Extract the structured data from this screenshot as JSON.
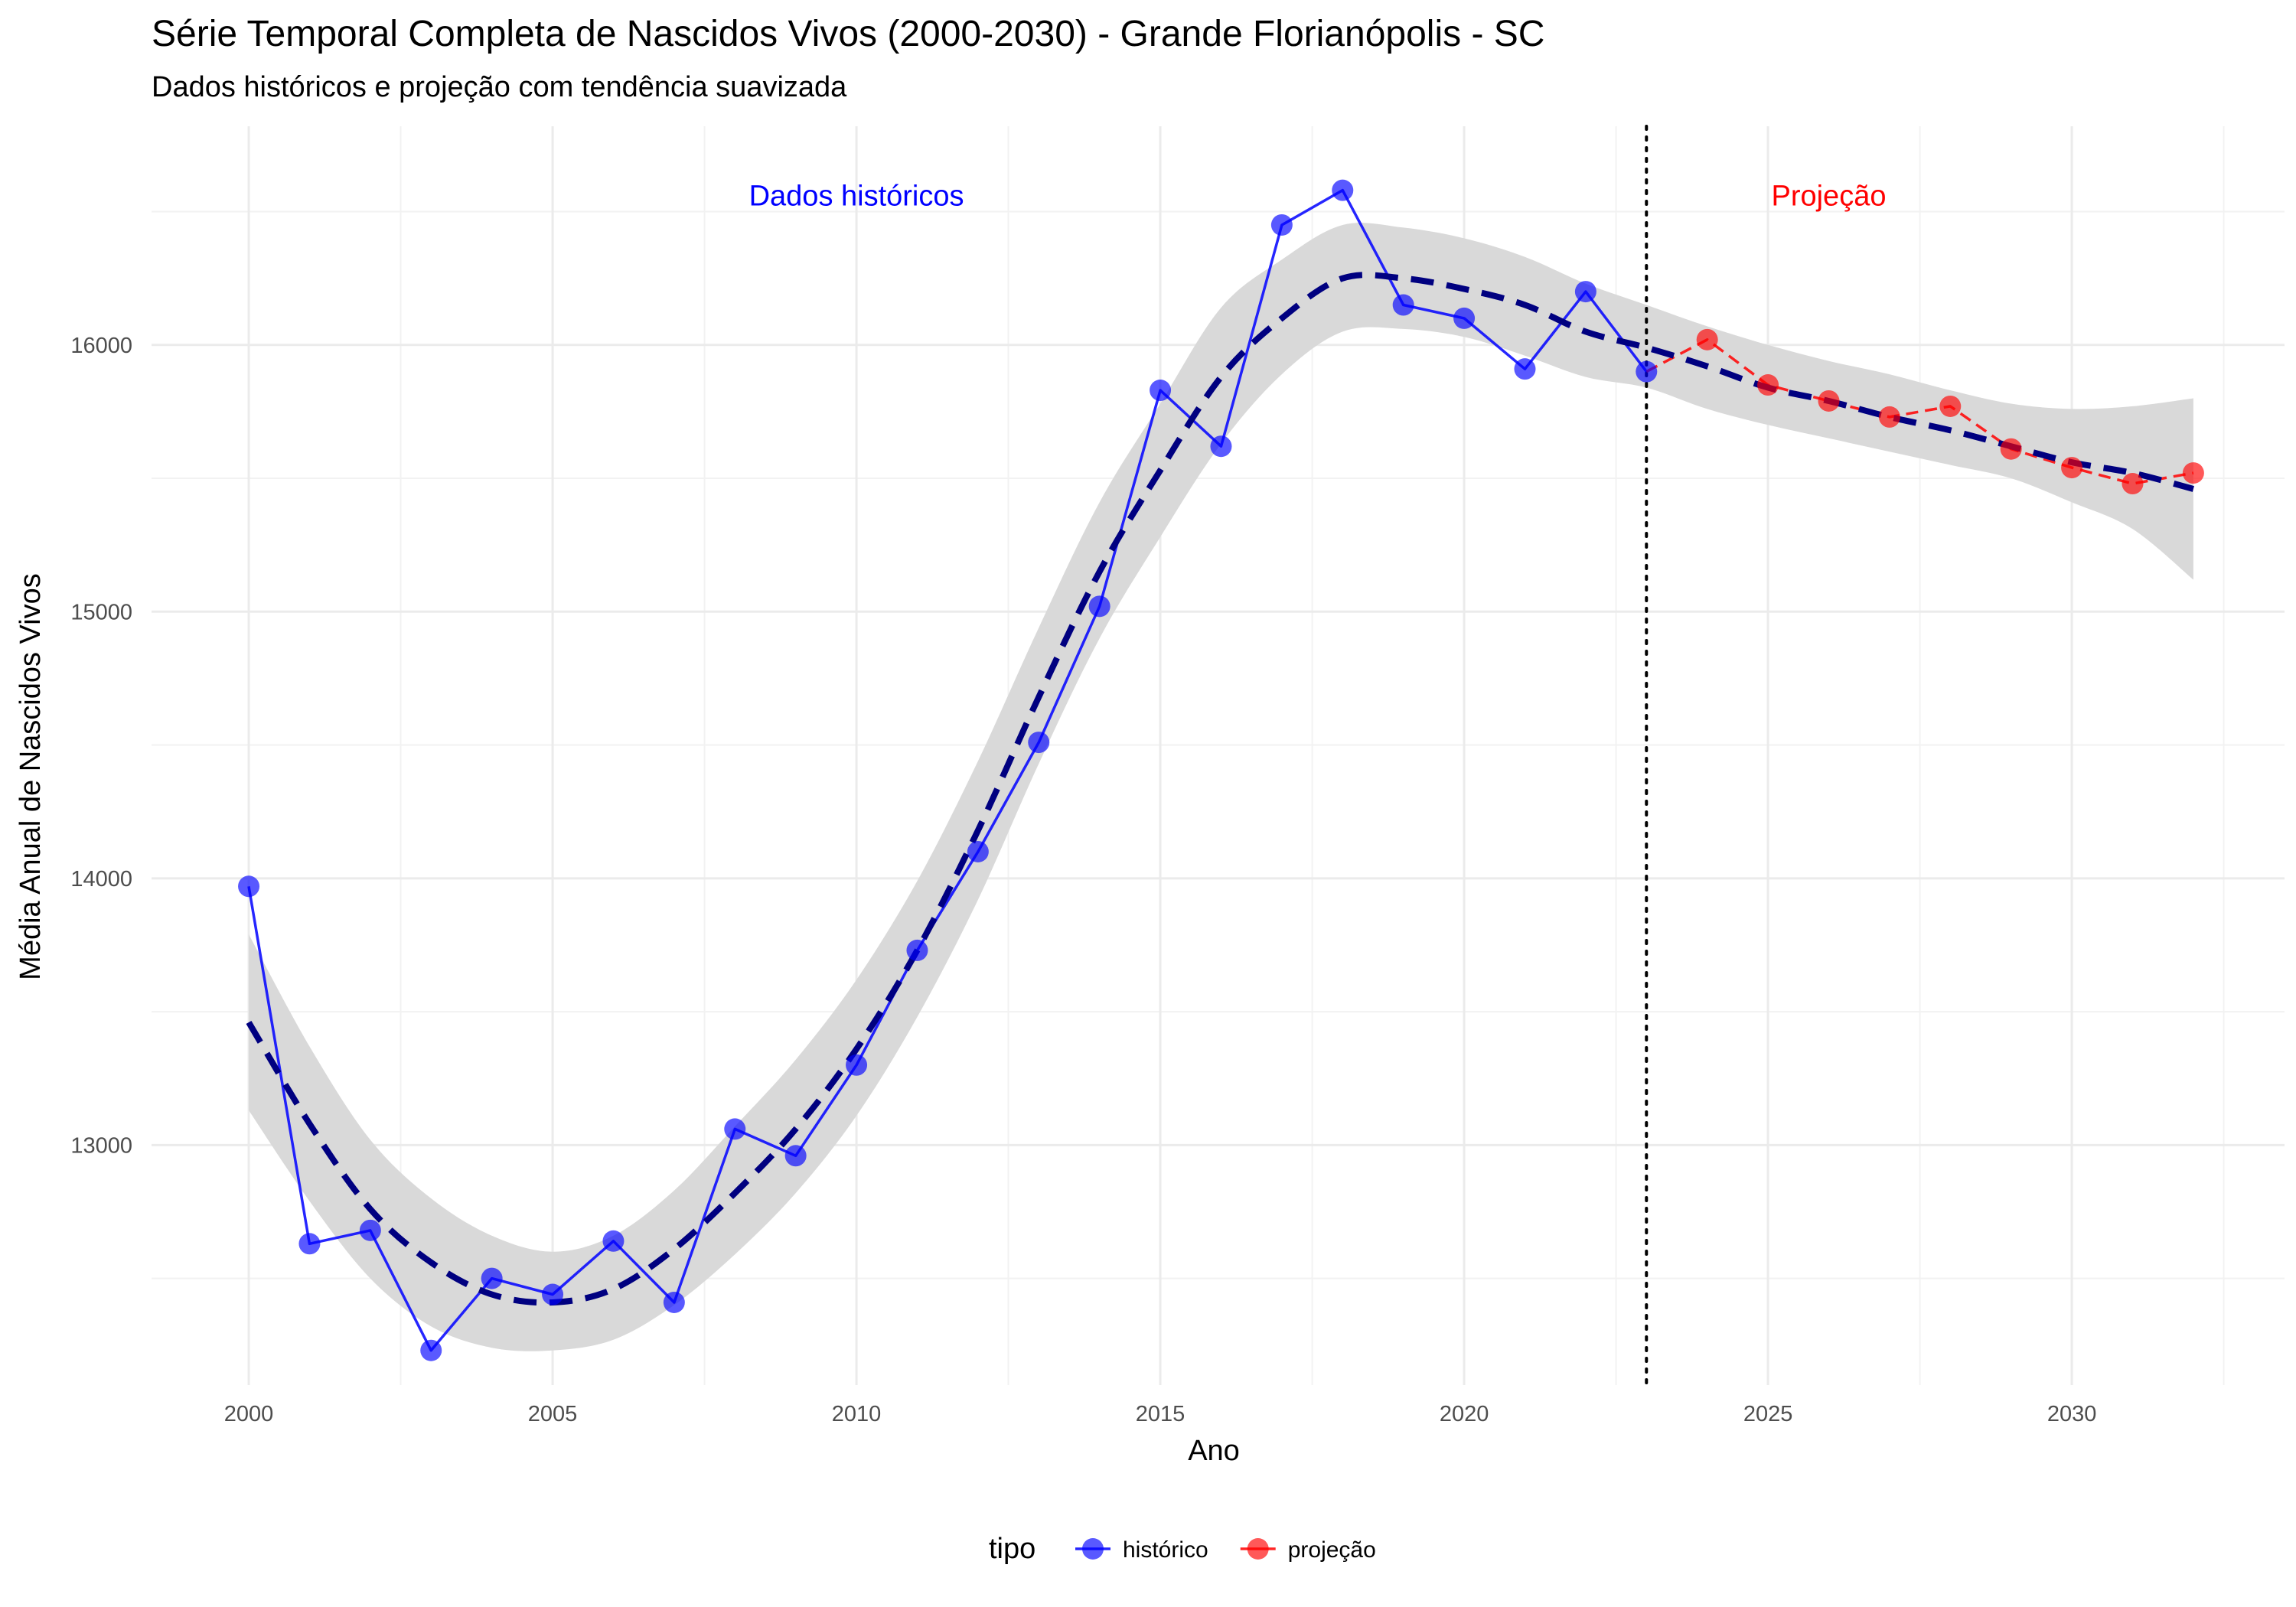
{
  "chart_data": {
    "type": "line",
    "title": "Série Temporal Completa de Nascidos Vivos (2000-2030) -  Grande Florianópolis - SC",
    "subtitle": "Dados históricos e projeção com tendência suavizada",
    "xlabel": "Ano",
    "ylabel": "Média Anual de Nascidos Vivos",
    "xlim": [
      1998.4,
      2033.5
    ],
    "ylim": [
      12100,
      16820
    ],
    "x_ticks": [
      2000,
      2005,
      2010,
      2015,
      2020,
      2025,
      2030
    ],
    "y_ticks": [
      13000,
      14000,
      15000,
      16000
    ],
    "grid": true,
    "legend": {
      "title": "tipo",
      "position": "bottom",
      "items": [
        {
          "label": "histórico",
          "color": "#0000ff"
        },
        {
          "label": "projeção",
          "color": "#ff0000"
        }
      ]
    },
    "series": [
      {
        "name": "histórico",
        "color": "#0000ff",
        "line_style": "solid",
        "x": [
          2000,
          2001,
          2002,
          2003,
          2004,
          2005,
          2006,
          2007,
          2008,
          2009,
          2010,
          2011,
          2012,
          2013,
          2014,
          2015,
          2016,
          2017,
          2018,
          2019,
          2020,
          2021,
          2022,
          2023
        ],
        "y": [
          13970,
          12630,
          12680,
          12230,
          12500,
          12440,
          12640,
          12410,
          13060,
          12960,
          13300,
          13730,
          14100,
          14510,
          15020,
          15830,
          15620,
          16450,
          16580,
          16150,
          16100,
          15910,
          16200,
          15900
        ]
      },
      {
        "name": "projeção",
        "color": "#ff0000",
        "line_style": "dashed",
        "x": [
          2023,
          2024,
          2025,
          2026,
          2027,
          2028,
          2029,
          2030,
          2031,
          2032
        ],
        "y": [
          15900,
          16020,
          15850,
          15790,
          15730,
          15770,
          15610,
          15540,
          15480,
          15520
        ]
      }
    ],
    "smooth_trend": {
      "color": "#000080",
      "line_style": "dashed",
      "band_color": "#d9d9d9",
      "x": [
        2000,
        2001,
        2002,
        2003,
        2004,
        2005,
        2006,
        2007,
        2008,
        2009,
        2010,
        2011,
        2012,
        2013,
        2014,
        2015,
        2016,
        2017,
        2018,
        2019,
        2020,
        2021,
        2022,
        2023,
        2024,
        2025,
        2026,
        2027,
        2028,
        2029,
        2030,
        2031,
        2032
      ],
      "y": [
        13460,
        13080,
        12760,
        12560,
        12440,
        12410,
        12460,
        12610,
        12820,
        13060,
        13360,
        13730,
        14180,
        14680,
        15150,
        15530,
        15880,
        16100,
        16250,
        16250,
        16210,
        16150,
        16050,
        15990,
        15920,
        15840,
        15790,
        15730,
        15680,
        15620,
        15560,
        15520,
        15460
      ],
      "lower": [
        13130,
        12790,
        12500,
        12320,
        12240,
        12230,
        12270,
        12400,
        12590,
        12820,
        13110,
        13480,
        13920,
        14430,
        14900,
        15280,
        15630,
        15890,
        16050,
        16060,
        16030,
        15960,
        15880,
        15840,
        15760,
        15700,
        15650,
        15600,
        15550,
        15500,
        15410,
        15310,
        15120
      ],
      "upper": [
        13790,
        13370,
        13020,
        12800,
        12660,
        12600,
        12660,
        12830,
        13070,
        13320,
        13620,
        13990,
        14440,
        14940,
        15410,
        15780,
        16140,
        16320,
        16450,
        16440,
        16400,
        16330,
        16230,
        16150,
        16070,
        16000,
        15940,
        15890,
        15830,
        15780,
        15760,
        15770,
        15800
      ]
    },
    "vertical_line": {
      "x": 2023,
      "line_style": "dotted",
      "color": "#000000"
    },
    "annotations": [
      {
        "text": "Dados históricos",
        "x": 2010,
        "y": 16560,
        "color": "#0000ff"
      },
      {
        "text": "Projeção",
        "x": 2026,
        "y": 16560,
        "color": "#ff0000"
      }
    ]
  }
}
